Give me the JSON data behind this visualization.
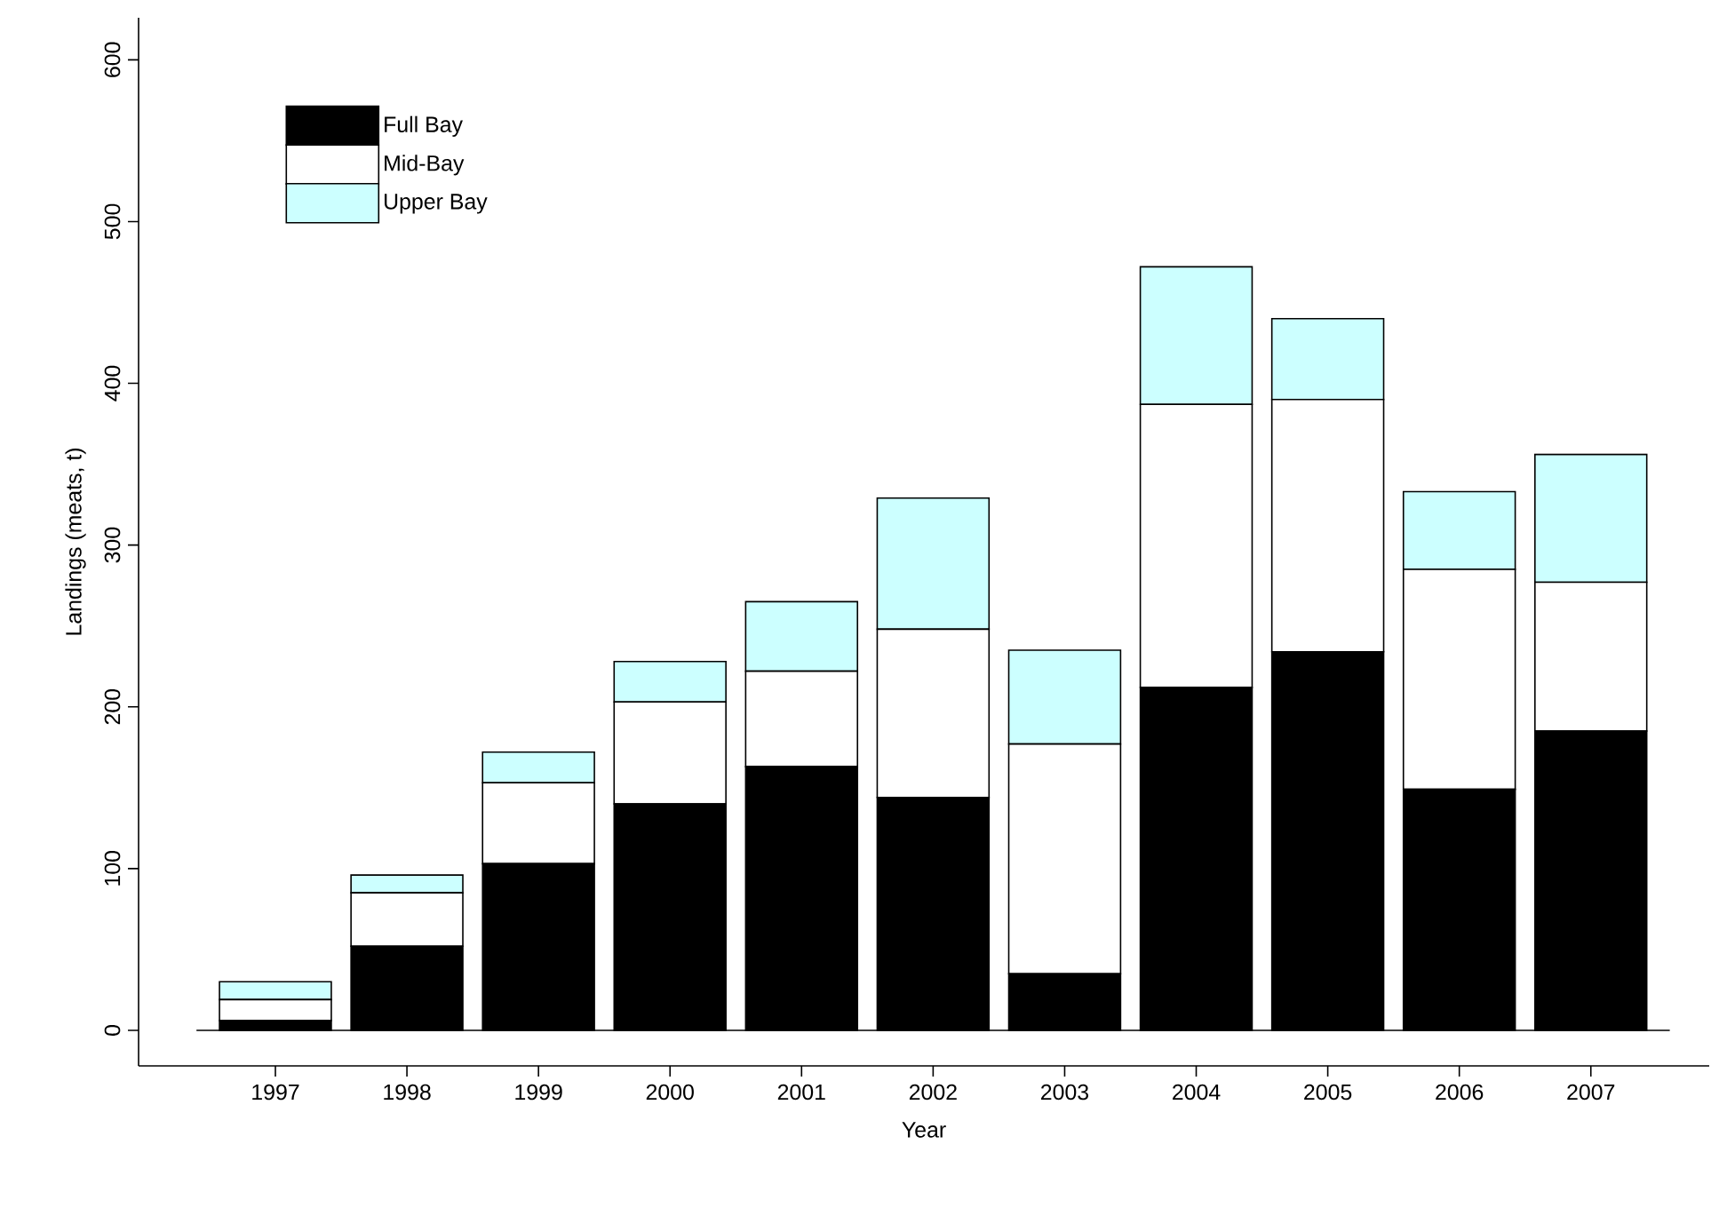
{
  "chart_data": {
    "type": "bar",
    "stacked": true,
    "xlabel": "Year",
    "ylabel": "Landings (meats, t)",
    "categories": [
      "1997",
      "1998",
      "1999",
      "2000",
      "2001",
      "2002",
      "2003",
      "2004",
      "2005",
      "2006",
      "2007"
    ],
    "series": [
      {
        "name": "Full Bay",
        "color": "#000000",
        "values": [
          6,
          52,
          103,
          140,
          163,
          144,
          35,
          212,
          234,
          149,
          185
        ]
      },
      {
        "name": "Mid-Bay",
        "color": "#ffffff",
        "values": [
          13,
          33,
          50,
          63,
          59,
          104,
          142,
          175,
          156,
          136,
          92
        ]
      },
      {
        "name": "Upper Bay",
        "color": "#ccffff",
        "values": [
          11,
          11,
          19,
          25,
          43,
          81,
          58,
          85,
          50,
          48,
          79
        ]
      }
    ],
    "ylim": [
      -22,
      626
    ],
    "yticks": [
      0,
      100,
      200,
      300,
      400,
      500,
      600
    ],
    "ref_lines": [
      {
        "axis": "y",
        "value": 0
      }
    ],
    "legend": "top left",
    "grid": false
  }
}
